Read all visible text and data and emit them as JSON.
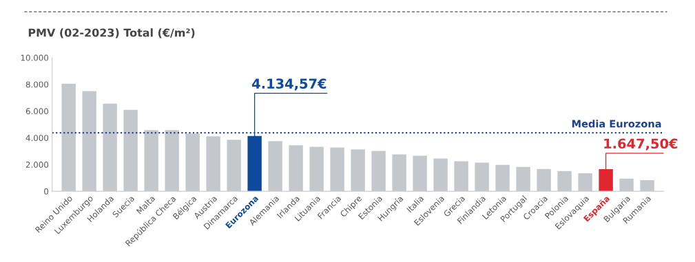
{
  "chart_data": {
    "type": "bar",
    "title": "PMV (02-2023) Total (€/m²)",
    "categories": [
      "Reino Unido",
      "Luxemburgo",
      "Holanda",
      "Suecia",
      "Malta",
      "República Checa",
      "Bélgica",
      "Austria",
      "Dinamarca",
      "Eurozona",
      "Alemania",
      "Irlanda",
      "Lituania",
      "Francia",
      "Chipre",
      "Estonia",
      "Hungría",
      "Italia",
      "Eslovenia",
      "Grecia",
      "Finlandia",
      "Letonia",
      "Portugal",
      "Croacia",
      "Polonia",
      "Eslovaquia",
      "España",
      "Bulgaria",
      "Rumania"
    ],
    "values": [
      8050,
      7500,
      6560,
      6090,
      4580,
      4580,
      4320,
      4110,
      3850,
      4134.57,
      3750,
      3440,
      3330,
      3280,
      3130,
      3020,
      2760,
      2660,
      2450,
      2240,
      2140,
      1980,
      1820,
      1670,
      1510,
      1350,
      1647.5,
      940,
      830
    ],
    "colors": [
      "#c4c8cc",
      "#c4c8cc",
      "#c4c8cc",
      "#c4c8cc",
      "#c4c8cc",
      "#c4c8cc",
      "#c4c8cc",
      "#c4c8cc",
      "#c4c8cc",
      "#0d4a9e",
      "#c4c8cc",
      "#c4c8cc",
      "#c4c8cc",
      "#c4c8cc",
      "#c4c8cc",
      "#c4c8cc",
      "#c4c8cc",
      "#c4c8cc",
      "#c4c8cc",
      "#c4c8cc",
      "#c4c8cc",
      "#c4c8cc",
      "#c4c8cc",
      "#c4c8cc",
      "#c4c8cc",
      "#c4c8cc",
      "#e0262e",
      "#c4c8cc",
      "#c4c8cc"
    ],
    "value_labels": [
      null,
      null,
      null,
      null,
      null,
      null,
      null,
      null,
      null,
      "4.134,57€",
      null,
      null,
      null,
      null,
      null,
      null,
      null,
      null,
      null,
      null,
      null,
      null,
      null,
      null,
      null,
      null,
      "1.647,50€",
      null,
      null
    ],
    "ylim": [
      0,
      10000
    ],
    "yticks": [
      0,
      {
        "value": 2000,
        "label": "2.000"
      },
      {
        "value": 4000,
        "label": "4.000"
      },
      {
        "value": 6000,
        "label": "6.000"
      },
      {
        "value": 8000,
        "label": "8.000"
      },
      {
        "value": 10000,
        "label": "10.000"
      }
    ],
    "ref_lines": [
      {
        "axis": "y",
        "value": 4375,
        "label": "Media Eurozona",
        "color": "#1f3f8f",
        "line_style": "dotted"
      }
    ],
    "grid": false
  }
}
